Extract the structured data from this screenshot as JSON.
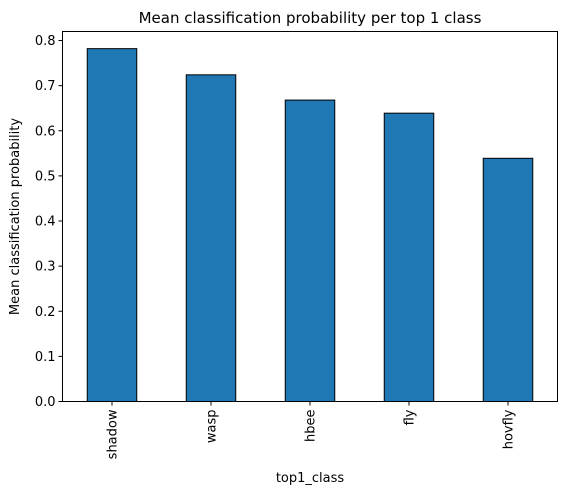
{
  "chart_data": {
    "type": "bar",
    "title": "Mean classification probability per top 1 class",
    "xlabel": "top1_class",
    "ylabel": "Mean classification probability",
    "categories": [
      "shadow",
      "wasp",
      "hbee",
      "fly",
      "hovfly"
    ],
    "values": [
      0.782,
      0.724,
      0.668,
      0.639,
      0.539
    ],
    "ylim": [
      0,
      0.82
    ],
    "yticks": [
      "0.0",
      "0.1",
      "0.2",
      "0.3",
      "0.4",
      "0.5",
      "0.6",
      "0.7",
      "0.8"
    ],
    "grid": false,
    "legend": "none",
    "bar_color": "#1f77b4",
    "edge_color": "#000000"
  }
}
